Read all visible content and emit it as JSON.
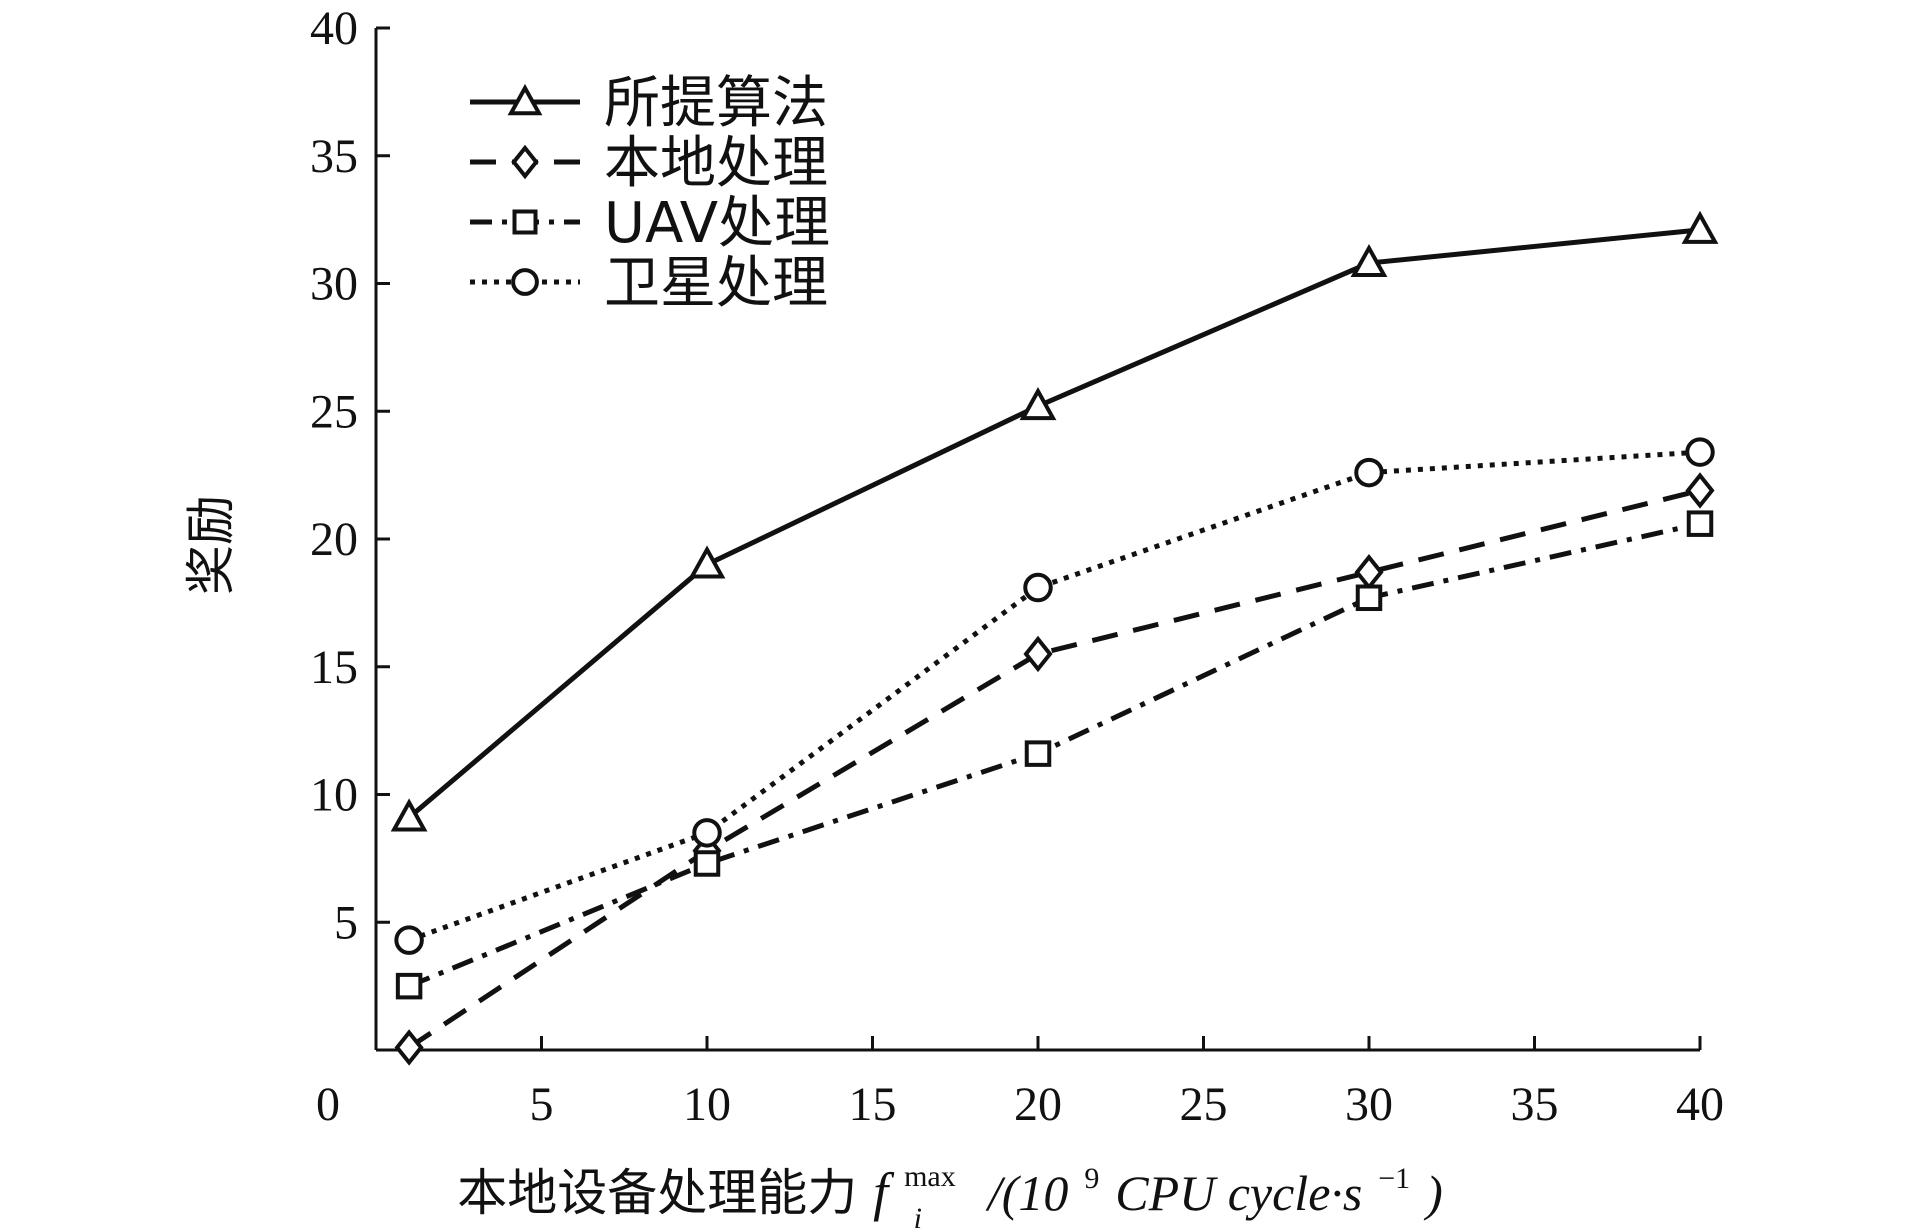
{
  "chart_data": {
    "type": "line",
    "ylabel": "奖励",
    "xlabel": {
      "prefix": "本地设备处理能力",
      "symbol": "f",
      "subscript": "i",
      "superscript": "max",
      "unit_start": "/(10",
      "unit_exp": "9",
      "unit_mid": " CPU cycle·s",
      "unit_exp2": "−1",
      "unit_end": ")"
    },
    "xlim": [
      0,
      40
    ],
    "ylim": [
      0,
      40
    ],
    "x_ticks": [
      0,
      5,
      10,
      15,
      20,
      25,
      30,
      35,
      40
    ],
    "x_tick_labels": [
      "0",
      "5",
      "10",
      "15",
      "20",
      "25",
      "30",
      "35",
      "40"
    ],
    "y_ticks": [
      5,
      10,
      15,
      20,
      25,
      30,
      35,
      40
    ],
    "y_tick_labels": [
      "5",
      "10",
      "15",
      "20",
      "25",
      "30",
      "35",
      "40"
    ],
    "x": [
      1,
      10,
      20,
      30,
      40
    ],
    "grid": false,
    "legend_position": "top-left",
    "series": [
      {
        "name": "所提算法",
        "values": [
          9.1,
          19.0,
          25.2,
          30.8,
          32.1
        ],
        "marker": "triangle",
        "line_style": "solid",
        "color": "#111111"
      },
      {
        "name": "本地处理",
        "values": [
          0.1,
          7.8,
          15.5,
          18.7,
          21.9
        ],
        "marker": "diamond",
        "line_style": "dashed",
        "color": "#111111"
      },
      {
        "name": "UAV处理",
        "values": [
          2.5,
          7.3,
          11.6,
          17.7,
          20.6
        ],
        "marker": "square",
        "line_style": "dashdot",
        "color": "#111111"
      },
      {
        "name": "卫星处理",
        "values": [
          4.3,
          8.5,
          18.1,
          22.6,
          23.4
        ],
        "marker": "circle",
        "line_style": "dotted",
        "color": "#111111"
      }
    ]
  }
}
